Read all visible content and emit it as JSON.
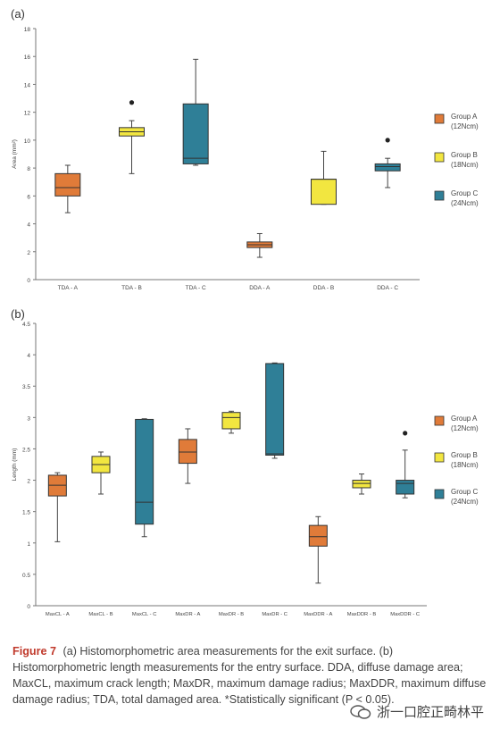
{
  "chart_data": [
    {
      "type": "box",
      "panel": "(a)",
      "ylabel": "Area (mm²)",
      "ylim": [
        0,
        18
      ],
      "yticks": [
        0,
        2,
        4,
        6,
        8,
        10,
        12,
        14,
        16,
        18
      ],
      "categories": [
        "TDA - A",
        "TDA - B",
        "TDA - C",
        "DDA - A",
        "DDA - B",
        "DDA - C"
      ],
      "boxes": [
        {
          "group": "A",
          "min": 4.8,
          "q1": 6.0,
          "median": 6.6,
          "q3": 7.6,
          "max": 8.2
        },
        {
          "group": "B",
          "min": 7.6,
          "q1": 10.3,
          "median": 10.6,
          "q3": 10.9,
          "max": 11.4,
          "outliers": [
            12.7
          ]
        },
        {
          "group": "C",
          "min": 8.2,
          "q1": 8.3,
          "median": 8.7,
          "q3": 12.6,
          "max": 15.8
        },
        {
          "group": "A",
          "min": 1.6,
          "q1": 2.3,
          "median": 2.5,
          "q3": 2.7,
          "max": 3.3
        },
        {
          "group": "B",
          "min": 5.4,
          "q1": 5.4,
          "median": 7.2,
          "q3": 7.2,
          "max": 9.2
        },
        {
          "group": "C",
          "min": 6.6,
          "q1": 7.8,
          "median": 8.1,
          "q3": 8.3,
          "max": 8.7,
          "outliers": [
            10.0
          ]
        }
      ],
      "legend": [
        {
          "group": "A",
          "label": "Group A",
          "sub": "(12Ncm)"
        },
        {
          "group": "B",
          "label": "Group B",
          "sub": "(18Ncm)"
        },
        {
          "group": "C",
          "label": "Group C",
          "sub": "(24Ncm)"
        }
      ],
      "legend_position": "right",
      "grid": false
    },
    {
      "type": "box",
      "panel": "(b)",
      "ylabel": "Length (mm)",
      "ylim": [
        0,
        4.5
      ],
      "yticks": [
        "0",
        "0.5",
        "1",
        "1.5",
        "2",
        "2.5",
        "3",
        "3.5",
        "4",
        "4.5"
      ],
      "categories": [
        "MaxCL - A",
        "MaxCL - B",
        "MaxCL - C",
        "MaxDR - A",
        "MaxDR - B",
        "MaxDR - C",
        "MaxDDR - A",
        "MaxDDR - B",
        "MaxDDR - C"
      ],
      "boxes": [
        {
          "group": "A",
          "min": 1.02,
          "q1": 1.75,
          "median": 1.92,
          "q3": 2.08,
          "max": 2.12
        },
        {
          "group": "B",
          "min": 1.78,
          "q1": 2.12,
          "median": 2.25,
          "q3": 2.38,
          "max": 2.45
        },
        {
          "group": "C",
          "min": 1.1,
          "q1": 1.3,
          "median": 1.65,
          "q3": 2.97,
          "max": 2.98
        },
        {
          "group": "A",
          "min": 1.95,
          "q1": 2.27,
          "median": 2.45,
          "q3": 2.65,
          "max": 2.82
        },
        {
          "group": "B",
          "min": 2.75,
          "q1": 2.82,
          "median": 3.0,
          "q3": 3.08,
          "max": 3.1
        },
        {
          "group": "C",
          "min": 2.35,
          "q1": 2.4,
          "median": 2.42,
          "q3": 3.86,
          "max": 3.87
        },
        {
          "group": "A",
          "min": 0.36,
          "q1": 0.95,
          "median": 1.1,
          "q3": 1.28,
          "max": 1.42
        },
        {
          "group": "B",
          "min": 1.78,
          "q1": 1.88,
          "median": 1.95,
          "q3": 2.0,
          "max": 2.1
        },
        {
          "group": "C",
          "min": 1.72,
          "q1": 1.78,
          "median": 1.95,
          "q3": 2.0,
          "max": 2.48,
          "outliers": [
            2.75
          ]
        }
      ],
      "legend": [
        {
          "group": "A",
          "label": "Group A",
          "sub": "(12Ncm)"
        },
        {
          "group": "B",
          "label": "Group B",
          "sub": "(18Ncm)"
        },
        {
          "group": "C",
          "label": "Group C",
          "sub": "(24Ncm)"
        }
      ],
      "legend_position": "right",
      "grid": false
    }
  ],
  "colors": {
    "A": "#e07b39",
    "B": "#f2e640",
    "C": "#2f7f97"
  },
  "caption": {
    "figure_label": "Figure 7",
    "text": "(a) Histomorphometric area measurements for the exit surface. (b) Histomorphometric length measurements for the entry surface. DDA, diffuse damage area; MaxCL, maximum crack length; MaxDR, maximum damage radius; MaxDDR, maximum diffuse damage radius; TDA, total damaged area. *Statistically significant (P < 0.05)."
  },
  "watermark": {
    "text": "浙一口腔正畸林平"
  }
}
